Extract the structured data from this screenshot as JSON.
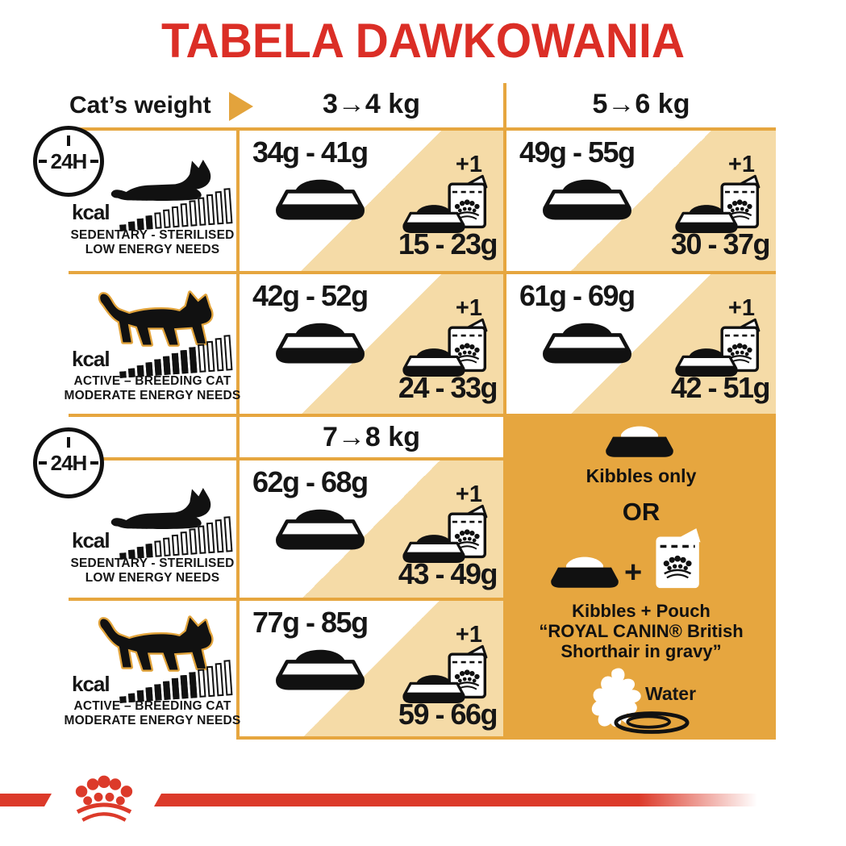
{
  "title": "TABELA DAWKOWANIA",
  "header": {
    "weight_label": "Cat’s weight",
    "arrow_icon": "right-arrow",
    "clock_label": "24H"
  },
  "kcal_label": "kcal",
  "profiles": [
    {
      "id": "sedentary",
      "label_line1": "SEDENTARY - STERILISED",
      "label_line2": "LOW ENERGY NEEDS",
      "kcal_total": 13,
      "kcal_filled": 4,
      "cat_icon": "lying-cat"
    },
    {
      "id": "active",
      "label_line1": "ACTIVE – BREEDING CAT",
      "label_line2": "MODERATE ENERGY NEEDS",
      "kcal_total": 13,
      "kcal_filled": 9,
      "cat_icon": "walking-cat"
    }
  ],
  "sections": [
    {
      "columns": [
        "3→4 kg",
        "5→6 kg"
      ],
      "rows": [
        {
          "profile": "sedentary",
          "cells": [
            {
              "kibbles": "34g - 41g",
              "plus": "+1",
              "mixed": "15 - 23g"
            },
            {
              "kibbles": "49g - 55g",
              "plus": "+1",
              "mixed": "30 - 37g"
            }
          ]
        },
        {
          "profile": "active",
          "cells": [
            {
              "kibbles": "42g - 52g",
              "plus": "+1",
              "mixed": "24 - 33g"
            },
            {
              "kibbles": "61g - 69g",
              "plus": "+1",
              "mixed": "42 - 51g"
            }
          ]
        }
      ]
    },
    {
      "columns": [
        "7→8 kg"
      ],
      "rows": [
        {
          "profile": "sedentary",
          "cells": [
            {
              "kibbles": "62g - 68g",
              "plus": "+1",
              "mixed": "43 - 49g"
            }
          ]
        },
        {
          "profile": "active",
          "cells": [
            {
              "kibbles": "77g - 85g",
              "plus": "+1",
              "mixed": "59 - 66g"
            }
          ]
        }
      ]
    }
  ],
  "feeding_options": {
    "kibbles_only": "Kibbles only",
    "or": "OR",
    "plus_sign": "+",
    "kibbles_pouch_line1": "Kibbles + Pouch",
    "kibbles_pouch_line2": "“ROYAL CANIN® British",
    "kibbles_pouch_line3": "Shorthair in gravy”",
    "water_label": "Water"
  },
  "colors": {
    "brand_red": "#DB2E26",
    "grid_orange": "#E6A63F",
    "panel_tan": "#F5DBA7",
    "text_black": "#161616"
  }
}
